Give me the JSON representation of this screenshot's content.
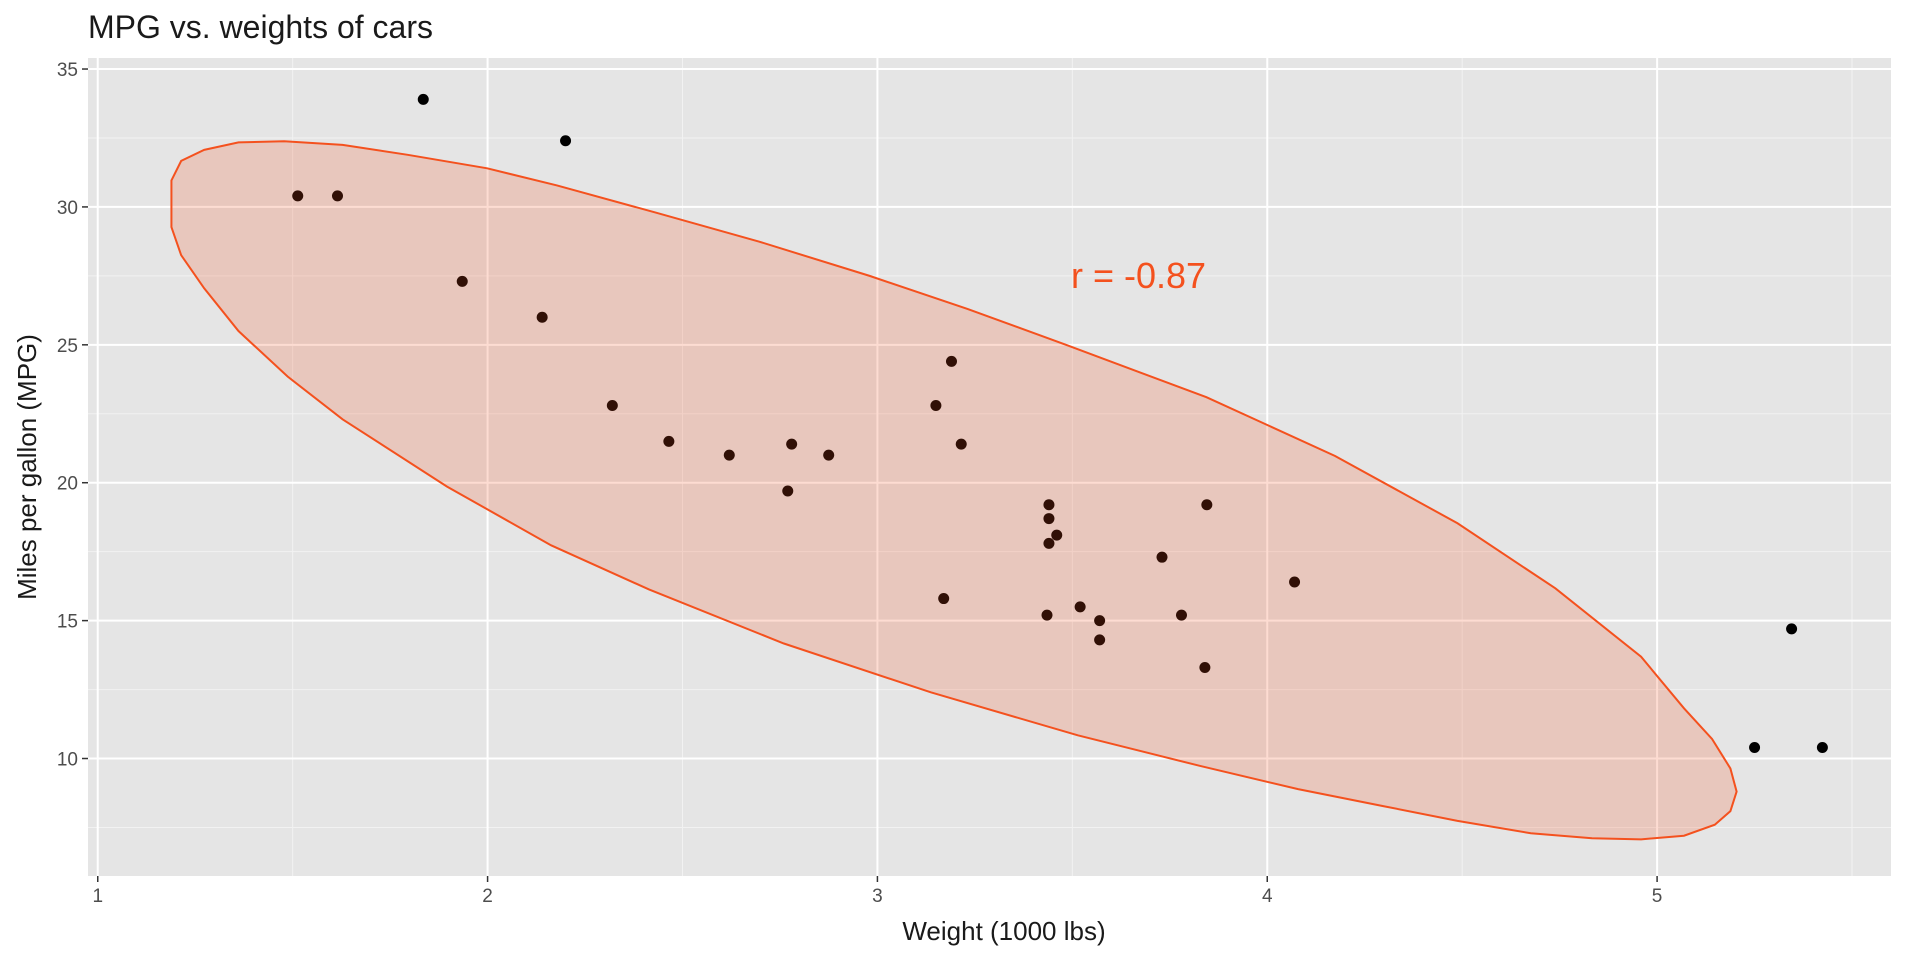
{
  "chart_data": {
    "type": "scatter",
    "title": "MPG vs. weights of cars",
    "xlabel": "Weight (1000 lbs)",
    "ylabel": "Miles per gallon (MPG)",
    "annotation": "r = -0.87",
    "annotation_color": "#f4511e",
    "x": [
      2.62,
      2.875,
      2.32,
      3.215,
      3.44,
      3.46,
      3.57,
      3.19,
      3.15,
      3.44,
      3.44,
      4.07,
      3.73,
      3.78,
      5.25,
      5.424,
      5.345,
      2.2,
      1.615,
      1.835,
      2.465,
      3.52,
      3.435,
      3.84,
      3.845,
      1.935,
      2.14,
      1.513,
      3.17,
      2.77,
      3.57,
      2.78
    ],
    "y": [
      21.0,
      21.0,
      22.8,
      21.4,
      18.7,
      18.1,
      14.3,
      24.4,
      22.8,
      19.2,
      17.8,
      16.4,
      17.3,
      15.2,
      10.4,
      10.4,
      14.7,
      32.4,
      30.4,
      33.9,
      21.5,
      15.5,
      15.2,
      13.3,
      19.2,
      27.3,
      26.0,
      30.4,
      15.8,
      19.7,
      15.0,
      21.4
    ],
    "color": "#000000",
    "ellipse": {
      "color": "#f4511e",
      "x": [
        1.189,
        1.214,
        1.273,
        1.361,
        1.478,
        1.628,
        1.795,
        1.999,
        2.178,
        2.43,
        2.697,
        2.98,
        3.231,
        3.482,
        3.844,
        4.174,
        4.488,
        4.739,
        4.959,
        5.069,
        5.141,
        5.188,
        5.204,
        5.188,
        5.148,
        5.069,
        4.959,
        4.833,
        4.676,
        4.488,
        4.299,
        4.079,
        3.828,
        3.514,
        3.137,
        2.76,
        2.414,
        2.163,
        1.896,
        1.628,
        1.487,
        1.361,
        1.273,
        1.214,
        1.189,
        1.189
      ],
      "y": [
        30.96,
        31.67,
        32.07,
        32.34,
        32.38,
        32.25,
        31.89,
        31.4,
        30.78,
        29.8,
        28.74,
        27.5,
        26.3,
        25.01,
        23.1,
        20.97,
        18.53,
        16.17,
        13.69,
        11.82,
        10.71,
        9.64,
        8.8,
        8.09,
        7.6,
        7.2,
        7.07,
        7.11,
        7.29,
        7.74,
        8.27,
        8.89,
        9.73,
        10.84,
        12.4,
        14.17,
        16.13,
        17.73,
        19.86,
        22.3,
        23.85,
        25.5,
        27.05,
        28.25,
        29.27,
        30.29
      ]
    },
    "xlim": [
      0.975,
      5.6
    ],
    "ylim": [
      5.74,
      35.4
    ],
    "xticks": [
      1,
      2,
      3,
      4,
      5
    ],
    "yticks": [
      10,
      15,
      20,
      25,
      30,
      35
    ],
    "xminor": [
      1.5,
      2.5,
      3.5,
      4.5,
      5.5
    ],
    "yminor": [
      7.5,
      12.5,
      17.5,
      22.5,
      27.5,
      32.5
    ],
    "grid": true,
    "panel_color": "#e5e5e5"
  }
}
